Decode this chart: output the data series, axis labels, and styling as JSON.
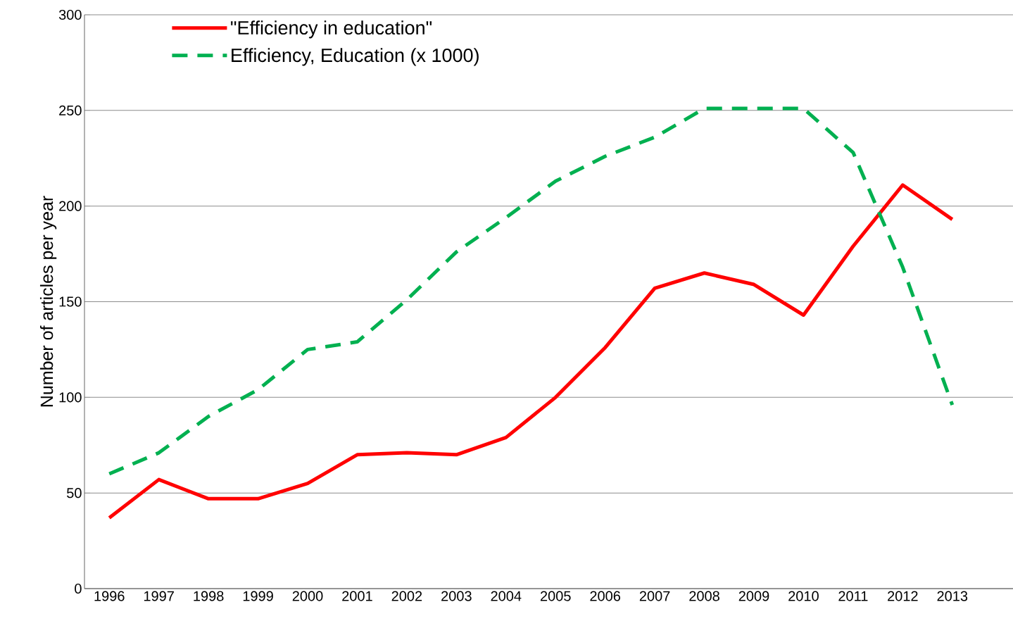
{
  "chart_data": {
    "type": "line",
    "ylabel": "Number of articles per year",
    "categories": [
      "1996",
      "1997",
      "1998",
      "1999",
      "2000",
      "2001",
      "2002",
      "2003",
      "2004",
      "2005",
      "2006",
      "2007",
      "2008",
      "2009",
      "2010",
      "2011",
      "2012",
      "2013"
    ],
    "series": [
      {
        "name": "\"Efficiency in education\"",
        "color": "#ff0000",
        "line_style": "solid",
        "values": [
          37,
          57,
          47,
          47,
          55,
          70,
          71,
          70,
          79,
          100,
          126,
          157,
          165,
          159,
          143,
          179,
          211,
          193
        ]
      },
      {
        "name": "Efficiency, Education (x 1000)",
        "color": "#00b050",
        "line_style": "dashed",
        "values": [
          60,
          71,
          90,
          104,
          125,
          129,
          151,
          176,
          194,
          213,
          226,
          236,
          251,
          251,
          251,
          228,
          168,
          96
        ]
      }
    ],
    "ylim": [
      0,
      300
    ],
    "yticks": [
      0,
      50,
      100,
      150,
      200,
      250,
      300
    ],
    "grid": "y",
    "legend": "top left"
  }
}
